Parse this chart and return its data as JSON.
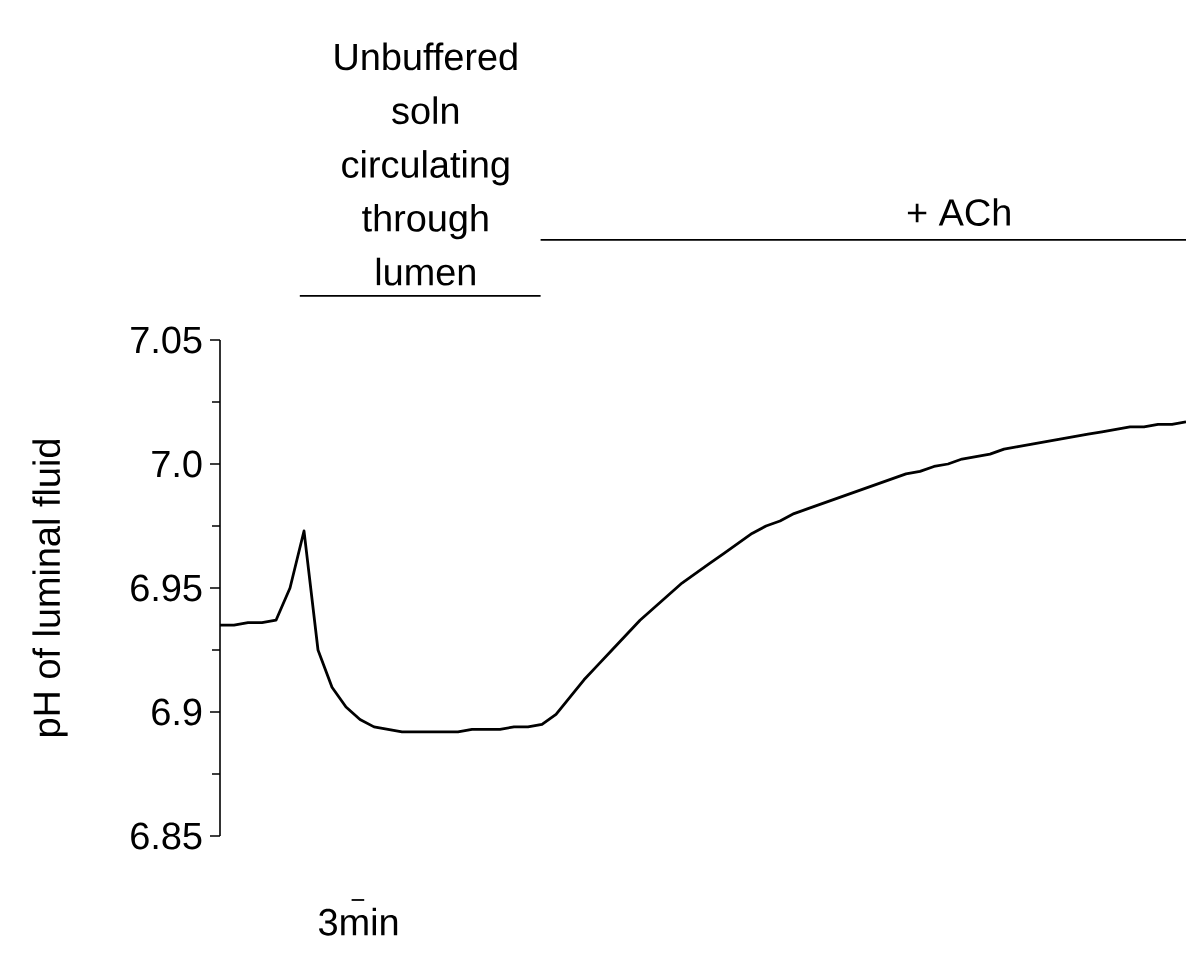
{
  "chart_data": {
    "type": "line",
    "ylabel": "pH of luminal fluid",
    "categories": [
      null,
      null,
      null,
      null,
      null,
      null,
      null,
      null,
      null,
      null,
      null,
      null,
      null,
      null,
      null,
      null,
      null,
      null,
      null,
      null,
      null,
      null,
      null,
      null,
      null,
      null,
      null,
      null,
      null,
      null,
      null,
      null,
      null,
      null,
      null,
      null,
      null,
      null,
      null,
      null,
      null,
      null,
      null,
      null,
      null,
      null,
      null,
      null,
      null,
      null,
      null,
      null,
      null,
      null,
      null,
      null,
      null,
      null,
      null,
      null,
      null,
      null,
      null,
      null,
      null,
      null,
      null,
      null,
      null,
      null
    ],
    "values": [
      6.935,
      6.935,
      6.936,
      6.936,
      6.937,
      6.95,
      6.973,
      6.925,
      6.91,
      6.902,
      6.897,
      6.894,
      6.893,
      6.892,
      6.892,
      6.892,
      6.892,
      6.892,
      6.893,
      6.893,
      6.893,
      6.894,
      6.894,
      6.895,
      6.899,
      6.906,
      6.913,
      6.919,
      6.925,
      6.931,
      6.937,
      6.942,
      6.947,
      6.952,
      6.956,
      6.96,
      6.964,
      6.968,
      6.972,
      6.975,
      6.977,
      6.98,
      6.982,
      6.984,
      6.986,
      6.988,
      6.99,
      6.992,
      6.994,
      6.996,
      6.997,
      6.999,
      7.0,
      7.002,
      7.003,
      7.004,
      7.006,
      7.007,
      7.008,
      7.009,
      7.01,
      7.011,
      7.012,
      7.013,
      7.014,
      7.015,
      7.015,
      7.016,
      7.016,
      7.017
    ],
    "color": "#000000",
    "ylim": [
      6.85,
      7.05
    ],
    "yticks": [
      6.85,
      6.9,
      6.95,
      {
        "value": 7.0,
        "label": "7.0"
      },
      7.05
    ],
    "tick_labels": "y",
    "annotations": [
      "Unbuffered soln circulating through lumen",
      "+ ACh",
      "3min"
    ]
  }
}
